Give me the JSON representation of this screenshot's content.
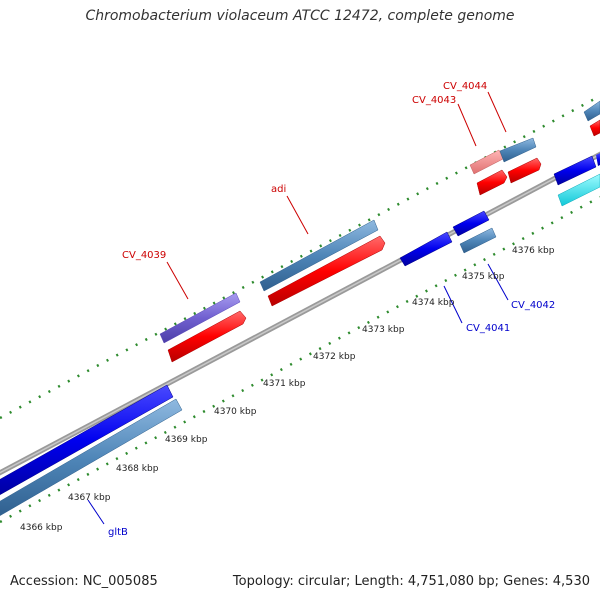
{
  "title": "Chromobacterium violaceum ATCC 12472, complete genome",
  "footer": {
    "accession": "Accession: NC_005085",
    "summary": "Topology: circular; Length: 4,751,080 bp; Genes: 4,530"
  },
  "ticks": [
    {
      "label": "4366 kbp"
    },
    {
      "label": "4367 kbp"
    },
    {
      "label": "4368 kbp"
    },
    {
      "label": "4369 kbp"
    },
    {
      "label": "4370 kbp"
    },
    {
      "label": "4371 kbp"
    },
    {
      "label": "4372 kbp"
    },
    {
      "label": "4373 kbp"
    },
    {
      "label": "4374 kbp"
    },
    {
      "label": "4375 kbp"
    },
    {
      "label": "4376 kbp"
    }
  ],
  "gene_labels": {
    "cv4039": "CV_4039",
    "adi": "adi",
    "cv4043": "CV_4043",
    "cv4044": "CV_4044",
    "cv4041": "CV_4041",
    "cv4042": "CV_4042",
    "gltB": "gltB"
  },
  "colors": {
    "backbone": "#8c8c8c",
    "forward_gene": "#5b8fc0",
    "reverse_gene": "#1010e0",
    "cds": "#ff1010",
    "rrna": "#7b68d0",
    "pseudo": "#f08a8a",
    "cyan_feature": "#20e8f0",
    "dotted_track": "#2e8b2e",
    "forward_label": "#cc0000",
    "reverse_label": "#0000cc"
  }
}
